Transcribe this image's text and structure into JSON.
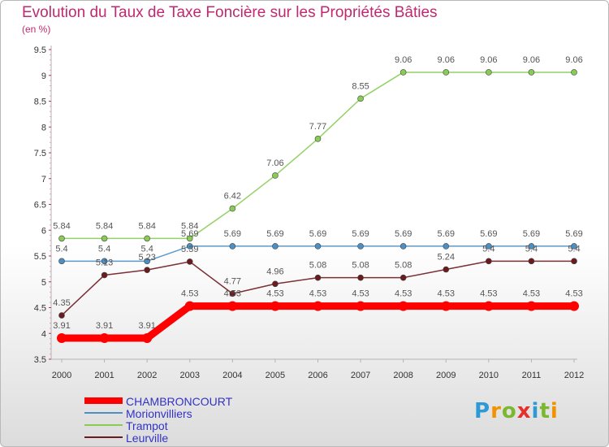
{
  "header": {
    "title": "Evolution du Taux de Taxe Foncière sur les Propriétés Bâties",
    "unit": "(en %)"
  },
  "logo": {
    "letters": [
      "P",
      "r",
      "o",
      "x",
      "i",
      "t",
      "i"
    ],
    "colors": [
      "#2d9ad6",
      "#f39200",
      "#7cb82f",
      "#e4312b",
      "#2d9ad6",
      "#7cb82f",
      "#f39200"
    ]
  },
  "chart_data": {
    "type": "line",
    "title": "Evolution du Taux de Taxe Foncière sur les Propriétés Bâties",
    "ylabel": "(en %)",
    "xlabel": "",
    "ylim": [
      3.5,
      9.5
    ],
    "yticks": [
      "3.5",
      "4",
      "4.5",
      "5",
      "5.5",
      "6",
      "6.5",
      "7",
      "7.5",
      "8",
      "8.5",
      "9",
      "9.5"
    ],
    "x": [
      "2000",
      "2001",
      "2002",
      "2003",
      "2004",
      "2005",
      "2006",
      "2007",
      "2008",
      "2009",
      "2010",
      "2011",
      "2012"
    ],
    "series": [
      {
        "name": "CHAMBRONCOURT",
        "color": "#ff0000",
        "values": [
          3.91,
          3.91,
          3.91,
          4.53,
          4.53,
          4.53,
          4.53,
          4.53,
          4.53,
          4.53,
          4.53,
          4.53,
          4.53
        ],
        "labels": [
          "3.91",
          "3.91",
          "3.91",
          "4.53",
          "4.53",
          "4.53",
          "4.53",
          "4.53",
          "4.53",
          "4.53",
          "4.53",
          "4.53",
          "4.53"
        ]
      },
      {
        "name": "Morionvilliers",
        "color": "#4b8fc5",
        "values": [
          5.4,
          5.4,
          5.4,
          5.69,
          5.69,
          5.69,
          5.69,
          5.69,
          5.69,
          5.69,
          5.69,
          5.69,
          5.69
        ],
        "labels": [
          "5.4",
          "5.4",
          "5.4",
          "5.69",
          "5.69",
          "5.69",
          "5.69",
          "5.69",
          "5.69",
          "5.69",
          "5.69",
          "5.69",
          "5.69"
        ]
      },
      {
        "name": "Trampot",
        "color": "#88cc55",
        "values": [
          5.84,
          5.84,
          5.84,
          5.84,
          6.42,
          7.06,
          7.77,
          8.55,
          9.06,
          9.06,
          9.06,
          9.06,
          9.06
        ],
        "labels": [
          "5.84",
          "5.84",
          "5.84",
          "5.84",
          "6.42",
          "7.06",
          "7.77",
          "8.55",
          "9.06",
          "9.06",
          "9.06",
          "9.06",
          "9.06"
        ]
      },
      {
        "name": "Leurville",
        "color": "#6b1a1e",
        "values": [
          4.35,
          5.13,
          5.23,
          5.39,
          4.77,
          4.96,
          5.08,
          5.08,
          5.08,
          5.24,
          5.4,
          5.4,
          5.4
        ],
        "labels": [
          "4.35",
          "5.13",
          "5.23",
          "5.39",
          "4.77",
          "4.96",
          "5.08",
          "5.08",
          "5.08",
          "5.24",
          "5.4",
          "5.4",
          "5.4"
        ]
      }
    ]
  }
}
